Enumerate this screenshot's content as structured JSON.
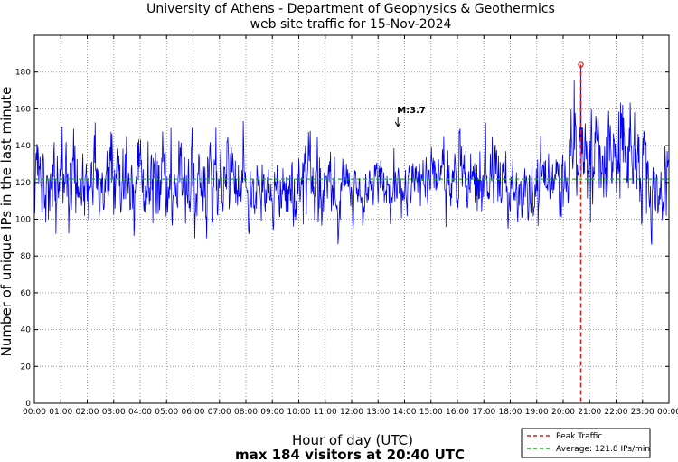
{
  "chart_data": {
    "type": "line",
    "title": "University of Athens - Department of Geophysics & Geothermics",
    "subtitle": "web site traffic for 15-Nov-2024",
    "xlabel": "Hour of day (UTC)",
    "ylabel": "Number of unique IPs in the last minute",
    "summary": "max 184 visitors at 20:40 UTC",
    "x_ticks": [
      "00:00",
      "01:00",
      "02:00",
      "03:00",
      "04:00",
      "05:00",
      "06:00",
      "07:00",
      "08:00",
      "09:00",
      "10:00",
      "11:00",
      "12:00",
      "13:00",
      "14:00",
      "15:00",
      "16:00",
      "17:00",
      "18:00",
      "19:00",
      "20:00",
      "21:00",
      "22:00",
      "23:00",
      "00:00"
    ],
    "y_ticks": [
      "0",
      "20",
      "40",
      "60",
      "80",
      "100",
      "120",
      "140",
      "160",
      "180"
    ],
    "xlim": [
      0,
      24
    ],
    "ylim": [
      0,
      200
    ],
    "grid": true,
    "average": 121.8,
    "peak": {
      "time": "20:40",
      "hour": 20.667,
      "value": 184
    },
    "annotation": {
      "label": "M:3.7",
      "hour": 13.75
    },
    "legend": [
      {
        "name": "Peak Traffic",
        "color": "#d62020",
        "style": "dashed"
      },
      {
        "name": "Average: 121.8 IPs/min",
        "color": "#1faa1f",
        "style": "dashed"
      }
    ],
    "series": [
      {
        "name": "Unique IPs per minute",
        "color": "#0000ee",
        "sampling": "1 minute, 1440 points, generated from the hourly levels below",
        "hourly_mean": [
          120,
          119,
          120,
          118,
          119,
          120,
          119,
          125,
          119,
          110,
          124,
          115,
          117,
          119,
          123,
          124,
          121,
          123,
          112,
          118,
          134,
          140,
          138,
          120
        ],
        "hourly_amplitude": [
          13,
          12,
          13,
          14,
          13,
          12,
          13,
          15,
          8,
          10,
          12,
          8,
          8,
          9,
          9,
          10,
          11,
          12,
          10,
          10,
          17,
          17,
          17,
          15
        ]
      }
    ]
  }
}
